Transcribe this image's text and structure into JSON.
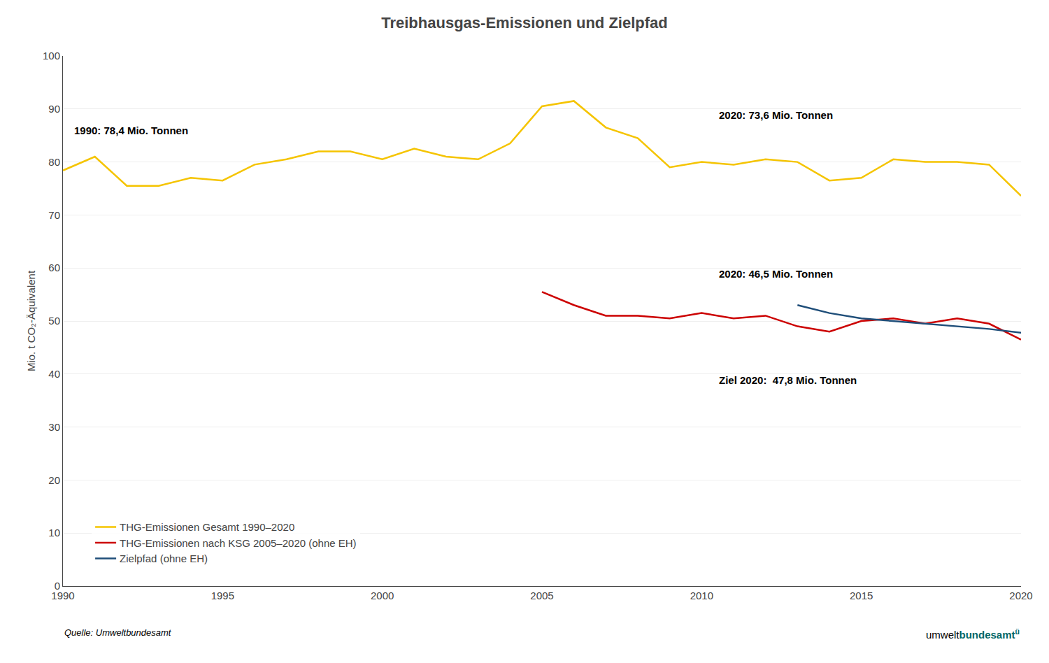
{
  "chart_data": {
    "type": "line",
    "title": "Treibhausgas-Emissionen und Zielpfad",
    "y_label": "Mio. t CO₂-Äquivalent",
    "xlim": [
      1990,
      2020
    ],
    "xticks": [
      1990,
      1995,
      2000,
      2005,
      2010,
      2015,
      2020
    ],
    "ylim": [
      0,
      100
    ],
    "yticks": [
      0,
      10,
      20,
      30,
      40,
      50,
      60,
      70,
      80,
      90,
      100
    ],
    "grid": "y",
    "legend": "lower left",
    "series": [
      {
        "name": "THG-Emissionen Gesamt 1990–2020",
        "color": "#f5c400",
        "x": [
          1990,
          1991,
          1992,
          1993,
          1994,
          1995,
          1996,
          1997,
          1998,
          1999,
          2000,
          2001,
          2002,
          2003,
          2004,
          2005,
          2006,
          2007,
          2008,
          2009,
          2010,
          2011,
          2012,
          2013,
          2014,
          2015,
          2016,
          2017,
          2018,
          2019,
          2020
        ],
        "values": [
          78.4,
          81.0,
          75.5,
          75.5,
          77.0,
          76.5,
          79.5,
          80.5,
          82.0,
          82.0,
          80.5,
          82.5,
          81.0,
          80.5,
          83.5,
          90.5,
          91.5,
          86.5,
          84.5,
          79.0,
          80.0,
          79.5,
          80.5,
          80.0,
          76.5,
          77.0,
          80.5,
          80.0,
          80.0,
          79.5,
          73.6
        ]
      },
      {
        "name": "THG-Emissionen nach KSG 2005–2020 (ohne EH)",
        "color": "#cc0000",
        "x": [
          2005,
          2006,
          2007,
          2008,
          2009,
          2010,
          2011,
          2012,
          2013,
          2014,
          2015,
          2016,
          2017,
          2018,
          2019,
          2020
        ],
        "values": [
          55.5,
          53.0,
          51.0,
          51.0,
          50.5,
          51.5,
          50.5,
          51.0,
          49.0,
          48.0,
          50.0,
          50.5,
          49.5,
          50.5,
          49.5,
          46.5
        ]
      },
      {
        "name": "Zielpfad (ohne EH)",
        "color": "#1f4e79",
        "x": [
          2013,
          2014,
          2015,
          2016,
          2017,
          2018,
          2019,
          2020
        ],
        "values": [
          53.0,
          51.5,
          50.5,
          50.0,
          49.5,
          49.0,
          48.5,
          47.8
        ]
      }
    ],
    "annotations": [
      {
        "text": "1990: 78,4 Mio. Tonnen",
        "x": 1990.3,
        "y": 84.5
      },
      {
        "text": "2020: 73,6 Mio. Tonnen",
        "x": 2010.5,
        "y": 87.5
      },
      {
        "text": "2020: 46,5 Mio. Tonnen",
        "x": 2010.5,
        "y": 57.5
      },
      {
        "text": "Ziel 2020:  47,8 Mio. Tonnen",
        "x": 2010.5,
        "y": 37.5
      }
    ],
    "source": "Quelle: Umweltbundesamt",
    "logo": [
      {
        "text": "umwelt"
      },
      {
        "text": "bundesamt",
        "color": "#006666"
      },
      {
        "text": "ü",
        "color": "#006666"
      }
    ]
  }
}
